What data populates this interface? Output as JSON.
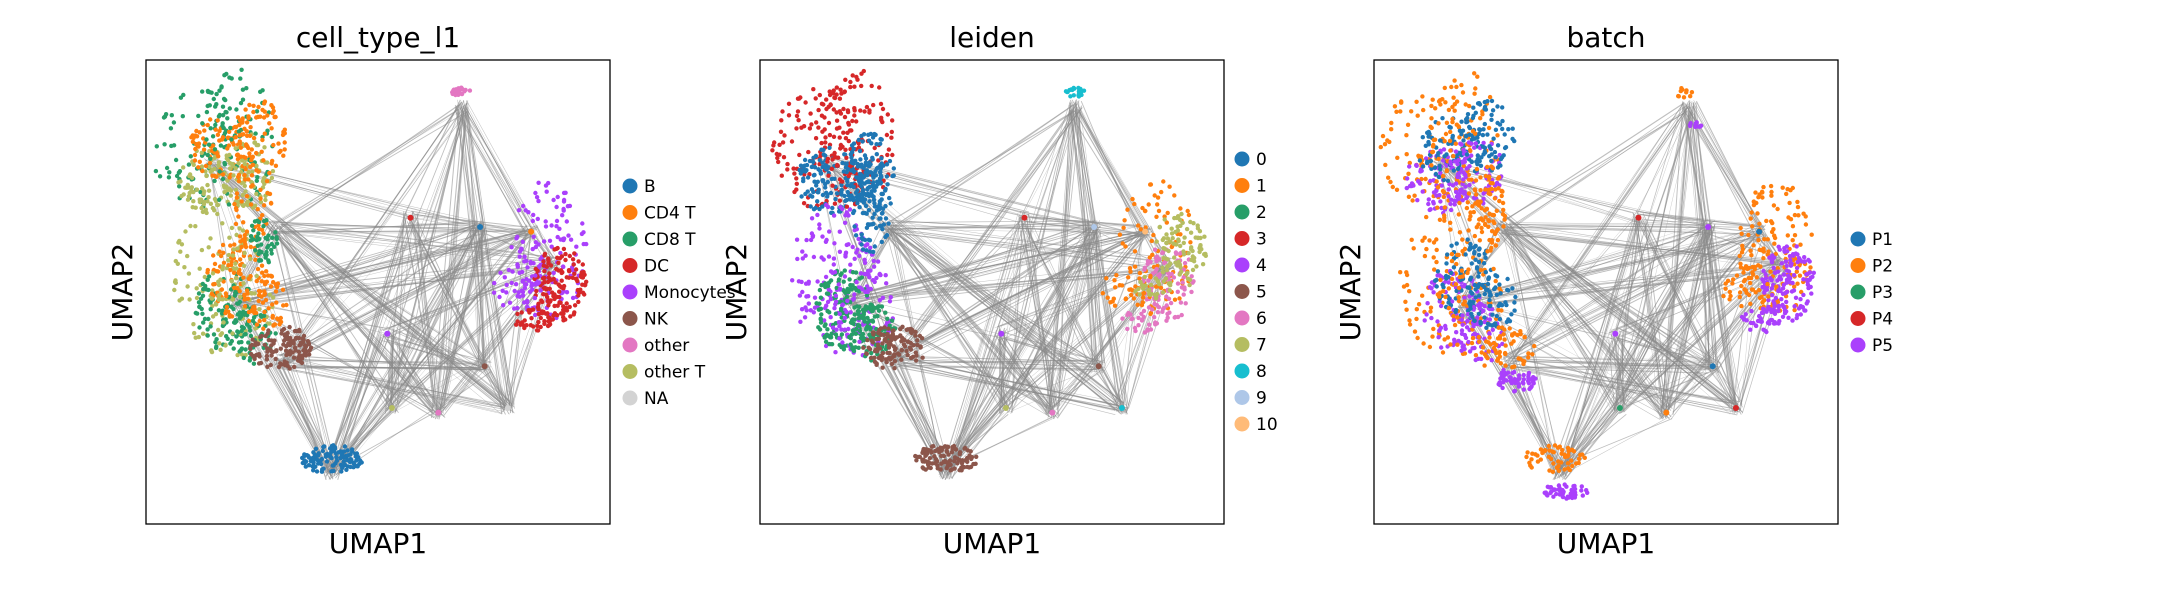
{
  "chart_data": [
    {
      "type": "scatter",
      "title": "cell_type_l1",
      "xlabel": "UMAP1",
      "ylabel": "UMAP2",
      "grid": false,
      "legend_placement": "right",
      "legend": [
        {
          "label": "B",
          "color": "#1f77b4"
        },
        {
          "label": "CD4 T",
          "color": "#ff7f0e"
        },
        {
          "label": "CD8 T",
          "color": "#279e68"
        },
        {
          "label": "DC",
          "color": "#d62728"
        },
        {
          "label": "Monocytes",
          "color": "#aa40fc"
        },
        {
          "label": "NK",
          "color": "#8c564b"
        },
        {
          "label": "other",
          "color": "#e377c2"
        },
        {
          "label": "other T",
          "color": "#b5bd61"
        },
        {
          "label": "NA",
          "color": "#d3d3d3"
        }
      ]
    },
    {
      "type": "scatter",
      "title": "leiden",
      "xlabel": "UMAP1",
      "ylabel": "UMAP2",
      "grid": false,
      "legend_placement": "right",
      "legend": [
        {
          "label": "0",
          "color": "#1f77b4"
        },
        {
          "label": "1",
          "color": "#ff7f0e"
        },
        {
          "label": "2",
          "color": "#279e68"
        },
        {
          "label": "3",
          "color": "#d62728"
        },
        {
          "label": "4",
          "color": "#aa40fc"
        },
        {
          "label": "5",
          "color": "#8c564b"
        },
        {
          "label": "6",
          "color": "#e377c2"
        },
        {
          "label": "7",
          "color": "#b5bd61"
        },
        {
          "label": "8",
          "color": "#17becf"
        },
        {
          "label": "9",
          "color": "#aec7e8"
        },
        {
          "label": "10",
          "color": "#ffbb78"
        }
      ]
    },
    {
      "type": "scatter",
      "title": "batch",
      "xlabel": "UMAP1",
      "ylabel": "UMAP2",
      "grid": false,
      "legend_placement": "right",
      "legend": [
        {
          "label": "P1",
          "color": "#1f77b4"
        },
        {
          "label": "P2",
          "color": "#ff7f0e"
        },
        {
          "label": "P3",
          "color": "#279e68"
        },
        {
          "label": "P4",
          "color": "#d62728"
        },
        {
          "label": "P5",
          "color": "#aa40fc"
        }
      ]
    }
  ]
}
